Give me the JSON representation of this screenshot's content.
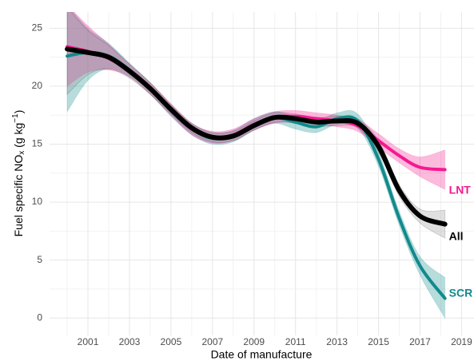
{
  "chart_data": {
    "type": "line",
    "x_label": "Date of manufacture",
    "y_label": {
      "main": "Fuel specific NO",
      "sub": "x",
      "mid": " (g kg",
      "sup": "−1",
      "end": ")"
    },
    "x": [
      2000,
      2001,
      2002,
      2003,
      2004,
      2005,
      2006,
      2007,
      2008,
      2009,
      2010,
      2011,
      2012,
      2013,
      2014,
      2015,
      2016,
      2017,
      2018.2
    ],
    "series": [
      {
        "name": "SCR",
        "color": "#128a8c",
        "values": [
          22.6,
          22.9,
          22.6,
          21.4,
          19.8,
          17.9,
          16.3,
          15.5,
          15.7,
          16.7,
          17.3,
          16.9,
          16.5,
          17.2,
          17.0,
          13.7,
          8.6,
          4.5,
          1.7
        ],
        "lower": [
          17.8,
          20.5,
          21.5,
          20.8,
          19.3,
          17.4,
          15.8,
          15.0,
          15.2,
          16.2,
          16.8,
          16.3,
          16.0,
          16.7,
          16.4,
          13.1,
          8.0,
          3.7,
          0.0
        ],
        "upper": [
          27.0,
          25.0,
          23.7,
          22.0,
          20.3,
          18.4,
          16.8,
          16.0,
          16.2,
          17.2,
          17.8,
          17.4,
          17.0,
          17.7,
          17.6,
          14.3,
          9.2,
          5.3,
          3.5
        ]
      },
      {
        "name": "LNT",
        "color": "#f5198f",
        "values": [
          23.4,
          23.0,
          22.4,
          21.3,
          19.8,
          18.0,
          16.3,
          15.6,
          15.8,
          16.7,
          17.3,
          17.4,
          17.2,
          17.0,
          16.6,
          15.3,
          14.0,
          13.0,
          12.8
        ],
        "lower": [
          20.0,
          21.2,
          21.4,
          20.8,
          19.3,
          17.5,
          15.8,
          15.1,
          15.3,
          16.2,
          16.8,
          16.9,
          16.7,
          16.5,
          16.1,
          14.7,
          13.4,
          12.2,
          11.1
        ],
        "upper": [
          27.0,
          25.2,
          23.6,
          21.9,
          20.3,
          18.5,
          16.8,
          16.1,
          16.3,
          17.2,
          17.8,
          17.9,
          17.7,
          17.5,
          17.1,
          15.9,
          14.6,
          13.9,
          14.5
        ]
      },
      {
        "name": "All",
        "color": "#000000",
        "values": [
          23.2,
          22.9,
          22.5,
          21.3,
          19.8,
          18.0,
          16.4,
          15.6,
          15.7,
          16.6,
          17.3,
          17.2,
          16.9,
          17.0,
          16.8,
          14.8,
          11.0,
          8.8,
          8.1
        ],
        "lower": [
          19.3,
          21.0,
          21.5,
          20.7,
          19.3,
          17.6,
          16.0,
          15.2,
          15.3,
          16.2,
          16.9,
          16.8,
          16.5,
          16.6,
          16.4,
          14.3,
          10.5,
          8.2,
          6.9
        ],
        "upper": [
          26.8,
          24.8,
          23.5,
          21.9,
          20.3,
          18.4,
          16.8,
          16.0,
          16.1,
          17.0,
          17.7,
          17.6,
          17.3,
          17.4,
          17.2,
          15.3,
          11.5,
          9.4,
          9.3
        ]
      }
    ],
    "xlim": [
      1999.15,
      2019.6
    ],
    "ylim": [
      -1.5,
      26.4
    ],
    "xticks": [
      2001,
      2003,
      2005,
      2007,
      2009,
      2011,
      2013,
      2015,
      2017,
      2019
    ],
    "yticks": [
      0,
      5,
      10,
      15,
      20,
      25
    ],
    "grid": true
  }
}
